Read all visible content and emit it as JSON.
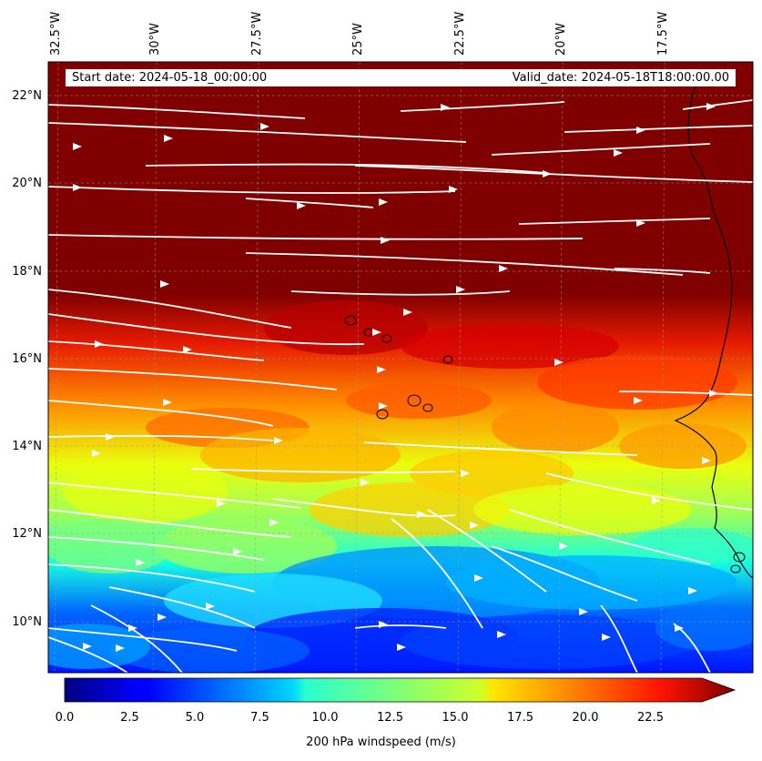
{
  "map": {
    "start_date": "Start date: 2024-05-18_00:00:00",
    "valid_date": "Valid_date: 2024-05-18T18:00:00.00",
    "lon_labels": [
      "32.5°W",
      "30°W",
      "27.5°W",
      "25°W",
      "22.5°W",
      "20°W",
      "17.5°W"
    ],
    "lat_labels": [
      "22°N",
      "20°N",
      "18°N",
      "16°N",
      "14°N",
      "12°N",
      "10°N"
    ],
    "colorbar": {
      "label": "200 hPa windspeed (m/s)",
      "ticks": [
        "0.0",
        "2.5",
        "5.0",
        "7.5",
        "10.0",
        "12.5",
        "15.0",
        "17.5",
        "20.0",
        "22.5"
      ],
      "vmin": 0,
      "vmax": 25,
      "extend": "max",
      "colormap": "jet"
    },
    "colors": {
      "high_wind": "#800000",
      "streamline": "#ffffff",
      "coast": "#000000"
    }
  }
}
